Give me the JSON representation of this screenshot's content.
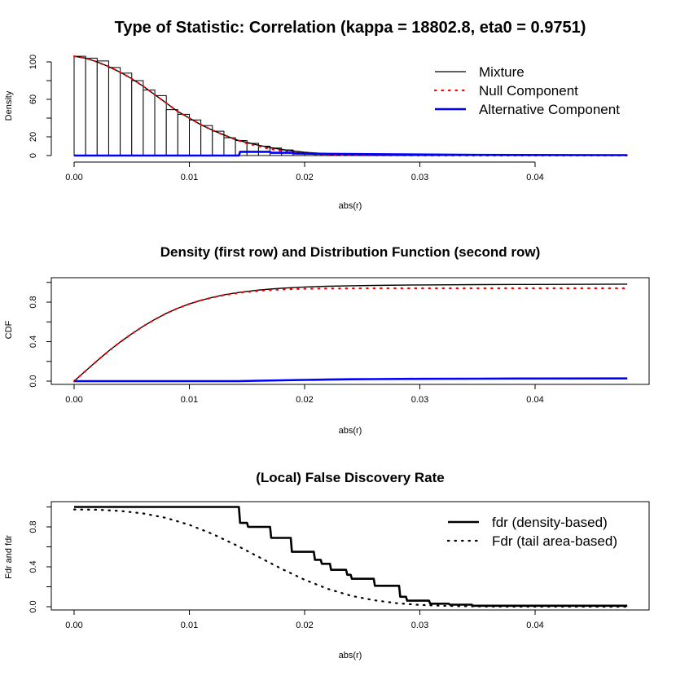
{
  "chart_data": [
    {
      "type": "bar",
      "title": "Type of Statistic: Correlation (kappa = 18802.8, eta0 = 0.9751)",
      "xlabel": "abs(r)",
      "ylabel": "Density",
      "xlim": [
        0,
        0.048
      ],
      "ylim": [
        0,
        105
      ],
      "x_ticks": [
        "0.00",
        "0.01",
        "0.02",
        "0.03",
        "0.04"
      ],
      "y_ticks": [
        "0",
        "20",
        "60",
        "100"
      ],
      "histogram": {
        "bin_width": 0.001,
        "counts": [
          106,
          104,
          101,
          94,
          88,
          80,
          70,
          64,
          49,
          44,
          38,
          32,
          26,
          19,
          16,
          13,
          10,
          8,
          6,
          3,
          2,
          1.5,
          1,
          1,
          0.8,
          0.6,
          0.5,
          0.4,
          0.3,
          0.3,
          0.2,
          0.2,
          0.2,
          0.2,
          0.2,
          0.2,
          0.2,
          0.2,
          0.2,
          0.2,
          0.2,
          0.2,
          0.2,
          0.2,
          0.2,
          0.2,
          0.2,
          0.2
        ]
      },
      "series": [
        {
          "name": "Mixture",
          "color": "#000000",
          "style": "solid",
          "x": [
            0,
            0.001,
            0.002,
            0.003,
            0.004,
            0.005,
            0.006,
            0.007,
            0.008,
            0.009,
            0.01,
            0.011,
            0.012,
            0.013,
            0.014,
            0.015,
            0.016,
            0.017,
            0.018,
            0.019,
            0.02,
            0.021,
            0.022,
            0.023,
            0.025,
            0.03,
            0.035,
            0.04,
            0.048
          ],
          "y": [
            106,
            104,
            100,
            95,
            89,
            82,
            74,
            65,
            56,
            47,
            40,
            33,
            27,
            22,
            17,
            14,
            11,
            8.5,
            6.5,
            5,
            3.5,
            2.6,
            2,
            1.6,
            1.2,
            0.8,
            0.6,
            0.5,
            0.4
          ]
        },
        {
          "name": "Null Component",
          "color": "#ff0000",
          "style": "dotted",
          "x": [
            0,
            0.001,
            0.002,
            0.003,
            0.004,
            0.005,
            0.006,
            0.007,
            0.008,
            0.009,
            0.01,
            0.011,
            0.012,
            0.013,
            0.014,
            0.015,
            0.016,
            0.017,
            0.018,
            0.019,
            0.02,
            0.021,
            0.022,
            0.023,
            0.025,
            0.03,
            0.048
          ],
          "y": [
            106,
            104,
            100,
            95,
            89,
            82,
            74,
            65,
            56,
            47,
            40,
            33,
            27,
            22,
            17,
            13,
            10,
            7,
            5,
            3.5,
            2.3,
            1.5,
            1,
            0.6,
            0.2,
            0,
            0
          ]
        },
        {
          "name": "Alternative Component",
          "color": "#0000ff",
          "style": "solid",
          "x": [
            0,
            0.0143,
            0.0144,
            0.017,
            0.0171,
            0.019,
            0.0191,
            0.022,
            0.028,
            0.035,
            0.048
          ],
          "y": [
            0,
            0,
            4,
            4,
            3,
            3,
            2.2,
            1.8,
            1.2,
            0.7,
            0.4
          ]
        }
      ],
      "legend_position": "top-right"
    },
    {
      "type": "line",
      "title": "Density (first row) and Distribution Function (second row)",
      "xlabel": "abs(r)",
      "ylabel": "CDF",
      "xlim": [
        0,
        0.048
      ],
      "ylim": [
        0,
        1
      ],
      "x_ticks": [
        "0.00",
        "0.01",
        "0.02",
        "0.03",
        "0.04"
      ],
      "y_ticks": [
        "0.0",
        "0.4",
        "0.8"
      ],
      "series": [
        {
          "name": "Mixture",
          "color": "#000000",
          "style": "solid",
          "x": [
            0,
            0.001,
            0.002,
            0.003,
            0.004,
            0.005,
            0.006,
            0.007,
            0.008,
            0.009,
            0.01,
            0.011,
            0.012,
            0.013,
            0.014,
            0.015,
            0.016,
            0.017,
            0.018,
            0.019,
            0.02,
            0.022,
            0.024,
            0.026,
            0.03,
            0.035,
            0.04,
            0.048
          ],
          "y": [
            0,
            0.104,
            0.207,
            0.305,
            0.396,
            0.479,
            0.556,
            0.625,
            0.686,
            0.738,
            0.782,
            0.818,
            0.848,
            0.873,
            0.893,
            0.909,
            0.922,
            0.932,
            0.941,
            0.947,
            0.953,
            0.961,
            0.966,
            0.969,
            0.974,
            0.977,
            0.979,
            0.982
          ]
        },
        {
          "name": "Null Component",
          "color": "#ff0000",
          "style": "dotted",
          "x": [
            0,
            0.001,
            0.002,
            0.003,
            0.004,
            0.005,
            0.006,
            0.007,
            0.008,
            0.009,
            0.01,
            0.011,
            0.012,
            0.013,
            0.014,
            0.015,
            0.016,
            0.017,
            0.018,
            0.019,
            0.02,
            0.022,
            0.024,
            0.026,
            0.03,
            0.048
          ],
          "y": [
            0,
            0.104,
            0.207,
            0.305,
            0.396,
            0.479,
            0.556,
            0.625,
            0.686,
            0.738,
            0.782,
            0.817,
            0.846,
            0.87,
            0.889,
            0.903,
            0.914,
            0.922,
            0.928,
            0.932,
            0.935,
            0.938,
            0.939,
            0.94,
            0.94,
            0.94
          ]
        },
        {
          "name": "Alternative Component",
          "color": "#0000ff",
          "style": "solid",
          "x": [
            0,
            0.0143,
            0.016,
            0.018,
            0.02,
            0.022,
            0.024,
            0.026,
            0.03,
            0.035,
            0.04,
            0.048
          ],
          "y": [
            0,
            0,
            0.004,
            0.008,
            0.012,
            0.016,
            0.019,
            0.021,
            0.023,
            0.025,
            0.026,
            0.027
          ]
        }
      ]
    },
    {
      "type": "line",
      "title": "(Local) False Discovery Rate",
      "xlabel": "abs(r)",
      "ylabel": "Fdr and fdr",
      "xlim": [
        0,
        0.048
      ],
      "ylim": [
        0,
        1
      ],
      "x_ticks": [
        "0.00",
        "0.01",
        "0.02",
        "0.03",
        "0.04"
      ],
      "y_ticks": [
        "0.0",
        "0.4",
        "0.8"
      ],
      "series": [
        {
          "name": "fdr (density-based)",
          "color": "#000000",
          "style": "solid",
          "x": [
            0,
            0.0143,
            0.0144,
            0.015,
            0.0151,
            0.017,
            0.0171,
            0.0188,
            0.0189,
            0.0208,
            0.0209,
            0.0214,
            0.0215,
            0.0222,
            0.0223,
            0.0236,
            0.0237,
            0.024,
            0.0241,
            0.026,
            0.0261,
            0.0282,
            0.0283,
            0.0288,
            0.0289,
            0.0308,
            0.0309,
            0.0325,
            0.0326,
            0.0345,
            0.0346,
            0.038,
            0.048
          ],
          "y": [
            1,
            1,
            0.84,
            0.84,
            0.8,
            0.8,
            0.69,
            0.69,
            0.55,
            0.55,
            0.47,
            0.47,
            0.43,
            0.43,
            0.37,
            0.37,
            0.32,
            0.32,
            0.28,
            0.28,
            0.21,
            0.21,
            0.1,
            0.1,
            0.06,
            0.06,
            0.03,
            0.03,
            0.02,
            0.02,
            0.01,
            0.01,
            0.01
          ]
        },
        {
          "name": "Fdr (tail area-based)",
          "color": "#000000",
          "style": "dotted",
          "x": [
            0,
            0.002,
            0.004,
            0.006,
            0.008,
            0.01,
            0.012,
            0.014,
            0.016,
            0.018,
            0.02,
            0.022,
            0.024,
            0.026,
            0.028,
            0.03,
            0.032,
            0.034,
            0.036,
            0.04,
            0.048
          ],
          "y": [
            0.975,
            0.972,
            0.96,
            0.935,
            0.89,
            0.82,
            0.73,
            0.62,
            0.5,
            0.38,
            0.27,
            0.18,
            0.11,
            0.065,
            0.035,
            0.018,
            0.009,
            0.005,
            0.002,
            0.001,
            0
          ]
        }
      ],
      "legend_position": "top-right"
    }
  ]
}
